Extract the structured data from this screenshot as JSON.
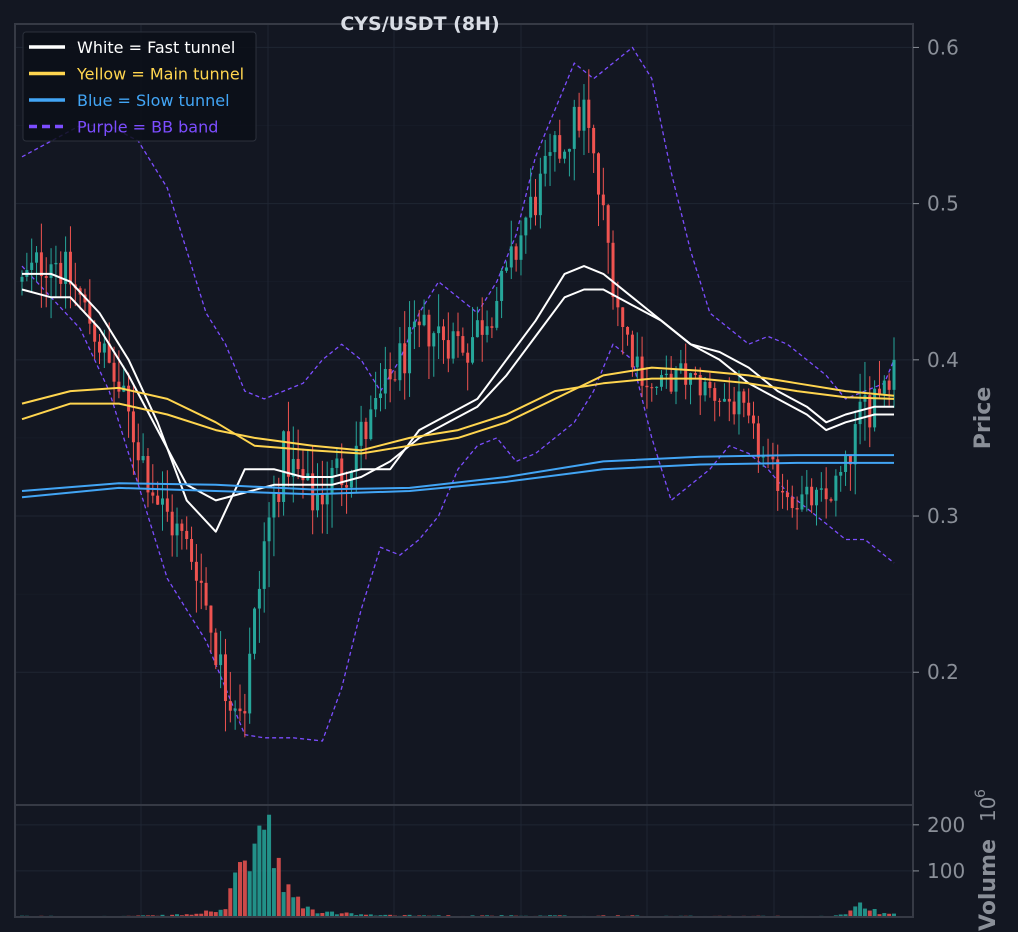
{
  "colors": {
    "background": "#131722",
    "panel_border": "#363a45",
    "grid": "#1f2633",
    "axis_text": "#8a8f98",
    "title_text": "#d9dde5",
    "bull": "#26a69a",
    "bear": "#ef5350",
    "fast_tunnel": "#ffffff",
    "main_tunnel": "#ffd54f",
    "slow_tunnel": "#42a5f5",
    "bb_band": "#7c4dff",
    "legend_bg": "#0c0f17"
  },
  "chart_data": {
    "type": "candlestick",
    "title": "CYS/USDT (8H)",
    "price_axis": {
      "label": "Price",
      "range": [
        0.115,
        0.615
      ],
      "ticks": [
        "0.2",
        "0.3",
        "0.4",
        "0.5",
        "0.6"
      ],
      "grid": true
    },
    "volume_axis": {
      "label": "Volume",
      "unit": "10^6",
      "unit_label": "10",
      "unit_exponent": "6",
      "range": [
        0,
        230
      ],
      "ticks": [
        "100",
        "200"
      ]
    },
    "legend": {
      "placement": "top-left",
      "entries": [
        {
          "label": "White = Fast tunnel",
          "color_key": "fast_tunnel",
          "style": "solid"
        },
        {
          "label": "Yellow = Main tunnel",
          "color_key": "main_tunnel",
          "style": "solid"
        },
        {
          "label": "Blue = Slow tunnel",
          "color_key": "slow_tunnel",
          "style": "solid"
        },
        {
          "label": "Purple = BB band",
          "color_key": "bb_band",
          "style": "dashed"
        }
      ]
    },
    "anchors": [
      [
        0,
        0.45,
        0.02,
        2
      ],
      [
        6,
        0.47,
        0.04,
        2
      ],
      [
        12,
        0.44,
        0.02,
        1.5
      ],
      [
        20,
        0.38,
        0.03,
        2
      ],
      [
        28,
        0.31,
        0.03,
        3
      ],
      [
        36,
        0.27,
        0.03,
        6
      ],
      [
        42,
        0.19,
        0.03,
        20
      ],
      [
        46,
        0.18,
        0.03,
        120
      ],
      [
        50,
        0.28,
        0.05,
        200
      ],
      [
        54,
        0.34,
        0.03,
        60
      ],
      [
        60,
        0.31,
        0.03,
        12
      ],
      [
        66,
        0.33,
        0.04,
        8
      ],
      [
        72,
        0.36,
        0.03,
        4
      ],
      [
        78,
        0.4,
        0.03,
        4
      ],
      [
        84,
        0.42,
        0.03,
        3
      ],
      [
        92,
        0.41,
        0.03,
        3
      ],
      [
        100,
        0.45,
        0.03,
        3
      ],
      [
        104,
        0.49,
        0.03,
        2
      ],
      [
        110,
        0.53,
        0.03,
        3
      ],
      [
        116,
        0.56,
        0.03,
        2
      ],
      [
        120,
        0.49,
        0.03,
        3
      ],
      [
        124,
        0.42,
        0.03,
        3
      ],
      [
        130,
        0.38,
        0.02,
        2
      ],
      [
        136,
        0.39,
        0.02,
        2
      ],
      [
        142,
        0.38,
        0.02,
        2
      ],
      [
        148,
        0.37,
        0.02,
        2
      ],
      [
        154,
        0.33,
        0.02,
        2
      ],
      [
        160,
        0.31,
        0.02,
        2
      ],
      [
        166,
        0.31,
        0.02,
        2
      ],
      [
        170,
        0.33,
        0.02,
        6
      ],
      [
        174,
        0.37,
        0.04,
        30
      ],
      [
        177,
        0.385,
        0.03,
        6
      ],
      [
        180,
        0.4,
        0.03,
        10
      ]
    ],
    "overlays": [
      {
        "key": "bb_upper",
        "color_key": "bb_band",
        "dashed": true,
        "points": [
          [
            0,
            0.53
          ],
          [
            6,
            0.54
          ],
          [
            12,
            0.55
          ],
          [
            18,
            0.55
          ],
          [
            24,
            0.54
          ],
          [
            30,
            0.51
          ],
          [
            34,
            0.47
          ],
          [
            38,
            0.43
          ],
          [
            42,
            0.41
          ],
          [
            46,
            0.38
          ],
          [
            50,
            0.375
          ],
          [
            54,
            0.38
          ],
          [
            58,
            0.385
          ],
          [
            62,
            0.4
          ],
          [
            66,
            0.41
          ],
          [
            70,
            0.4
          ],
          [
            74,
            0.38
          ],
          [
            78,
            0.4
          ],
          [
            82,
            0.43
          ],
          [
            86,
            0.45
          ],
          [
            90,
            0.44
          ],
          [
            94,
            0.43
          ],
          [
            98,
            0.45
          ],
          [
            102,
            0.48
          ],
          [
            106,
            0.53
          ],
          [
            110,
            0.56
          ],
          [
            114,
            0.59
          ],
          [
            118,
            0.58
          ],
          [
            122,
            0.59
          ],
          [
            126,
            0.6
          ],
          [
            130,
            0.58
          ],
          [
            134,
            0.52
          ],
          [
            138,
            0.47
          ],
          [
            142,
            0.43
          ],
          [
            146,
            0.42
          ],
          [
            150,
            0.41
          ],
          [
            154,
            0.415
          ],
          [
            158,
            0.41
          ],
          [
            162,
            0.4
          ],
          [
            166,
            0.39
          ],
          [
            170,
            0.375
          ],
          [
            174,
            0.38
          ],
          [
            178,
            0.385
          ],
          [
            180,
            0.4
          ]
        ]
      },
      {
        "key": "bb_lower",
        "color_key": "bb_band",
        "dashed": true,
        "points": [
          [
            0,
            0.46
          ],
          [
            6,
            0.44
          ],
          [
            12,
            0.42
          ],
          [
            18,
            0.38
          ],
          [
            22,
            0.34
          ],
          [
            26,
            0.3
          ],
          [
            30,
            0.26
          ],
          [
            34,
            0.24
          ],
          [
            38,
            0.22
          ],
          [
            42,
            0.19
          ],
          [
            46,
            0.16
          ],
          [
            50,
            0.158
          ],
          [
            56,
            0.158
          ],
          [
            62,
            0.156
          ],
          [
            66,
            0.19
          ],
          [
            70,
            0.24
          ],
          [
            74,
            0.28
          ],
          [
            78,
            0.275
          ],
          [
            82,
            0.285
          ],
          [
            86,
            0.3
          ],
          [
            90,
            0.33
          ],
          [
            94,
            0.345
          ],
          [
            98,
            0.35
          ],
          [
            102,
            0.335
          ],
          [
            106,
            0.34
          ],
          [
            110,
            0.35
          ],
          [
            114,
            0.36
          ],
          [
            118,
            0.38
          ],
          [
            122,
            0.41
          ],
          [
            126,
            0.4
          ],
          [
            130,
            0.35
          ],
          [
            134,
            0.31
          ],
          [
            138,
            0.32
          ],
          [
            142,
            0.33
          ],
          [
            146,
            0.345
          ],
          [
            150,
            0.34
          ],
          [
            154,
            0.33
          ],
          [
            158,
            0.315
          ],
          [
            162,
            0.305
          ],
          [
            166,
            0.295
          ],
          [
            170,
            0.285
          ],
          [
            174,
            0.285
          ],
          [
            178,
            0.275
          ],
          [
            180,
            0.27
          ]
        ]
      },
      {
        "key": "fast_upper",
        "color_key": "fast_tunnel",
        "dashed": false,
        "points": [
          [
            0,
            0.455
          ],
          [
            6,
            0.455
          ],
          [
            10,
            0.45
          ],
          [
            16,
            0.43
          ],
          [
            22,
            0.4
          ],
          [
            28,
            0.36
          ],
          [
            34,
            0.31
          ],
          [
            40,
            0.29
          ],
          [
            46,
            0.33
          ],
          [
            52,
            0.33
          ],
          [
            58,
            0.325
          ],
          [
            64,
            0.325
          ],
          [
            70,
            0.33
          ],
          [
            76,
            0.33
          ],
          [
            82,
            0.355
          ],
          [
            88,
            0.365
          ],
          [
            94,
            0.375
          ],
          [
            100,
            0.4
          ],
          [
            106,
            0.425
          ],
          [
            112,
            0.455
          ],
          [
            116,
            0.46
          ],
          [
            120,
            0.455
          ],
          [
            126,
            0.44
          ],
          [
            132,
            0.425
          ],
          [
            138,
            0.41
          ],
          [
            144,
            0.405
          ],
          [
            150,
            0.395
          ],
          [
            156,
            0.38
          ],
          [
            162,
            0.37
          ],
          [
            166,
            0.36
          ],
          [
            170,
            0.365
          ],
          [
            176,
            0.37
          ],
          [
            180,
            0.37
          ]
        ]
      },
      {
        "key": "fast_lower",
        "color_key": "fast_tunnel",
        "dashed": false,
        "points": [
          [
            0,
            0.445
          ],
          [
            6,
            0.44
          ],
          [
            10,
            0.44
          ],
          [
            16,
            0.42
          ],
          [
            22,
            0.39
          ],
          [
            28,
            0.355
          ],
          [
            34,
            0.32
          ],
          [
            40,
            0.31
          ],
          [
            46,
            0.315
          ],
          [
            52,
            0.32
          ],
          [
            58,
            0.32
          ],
          [
            64,
            0.32
          ],
          [
            70,
            0.325
          ],
          [
            76,
            0.335
          ],
          [
            82,
            0.35
          ],
          [
            88,
            0.36
          ],
          [
            94,
            0.37
          ],
          [
            100,
            0.39
          ],
          [
            106,
            0.415
          ],
          [
            112,
            0.44
          ],
          [
            116,
            0.445
          ],
          [
            120,
            0.445
          ],
          [
            126,
            0.435
          ],
          [
            132,
            0.425
          ],
          [
            138,
            0.41
          ],
          [
            144,
            0.4
          ],
          [
            150,
            0.385
          ],
          [
            156,
            0.375
          ],
          [
            162,
            0.365
          ],
          [
            166,
            0.355
          ],
          [
            170,
            0.36
          ],
          [
            176,
            0.365
          ],
          [
            180,
            0.365
          ]
        ]
      },
      {
        "key": "main_upper",
        "color_key": "main_tunnel",
        "dashed": false,
        "points": [
          [
            0,
            0.372
          ],
          [
            10,
            0.38
          ],
          [
            20,
            0.382
          ],
          [
            30,
            0.375
          ],
          [
            40,
            0.36
          ],
          [
            48,
            0.345
          ],
          [
            60,
            0.342
          ],
          [
            70,
            0.34
          ],
          [
            80,
            0.345
          ],
          [
            90,
            0.35
          ],
          [
            100,
            0.36
          ],
          [
            110,
            0.375
          ],
          [
            120,
            0.39
          ],
          [
            130,
            0.395
          ],
          [
            140,
            0.393
          ],
          [
            150,
            0.39
          ],
          [
            160,
            0.385
          ],
          [
            170,
            0.38
          ],
          [
            180,
            0.377
          ]
        ]
      },
      {
        "key": "main_lower",
        "color_key": "main_tunnel",
        "dashed": false,
        "points": [
          [
            0,
            0.362
          ],
          [
            10,
            0.372
          ],
          [
            20,
            0.372
          ],
          [
            30,
            0.365
          ],
          [
            40,
            0.355
          ],
          [
            48,
            0.35
          ],
          [
            60,
            0.345
          ],
          [
            70,
            0.342
          ],
          [
            80,
            0.35
          ],
          [
            90,
            0.355
          ],
          [
            100,
            0.365
          ],
          [
            110,
            0.38
          ],
          [
            120,
            0.385
          ],
          [
            130,
            0.388
          ],
          [
            140,
            0.388
          ],
          [
            150,
            0.385
          ],
          [
            160,
            0.38
          ],
          [
            170,
            0.376
          ],
          [
            180,
            0.375
          ]
        ]
      },
      {
        "key": "slow_upper",
        "color_key": "slow_tunnel",
        "dashed": false,
        "points": [
          [
            0,
            0.316
          ],
          [
            20,
            0.321
          ],
          [
            40,
            0.32
          ],
          [
            60,
            0.317
          ],
          [
            80,
            0.318
          ],
          [
            100,
            0.325
          ],
          [
            120,
            0.335
          ],
          [
            140,
            0.338
          ],
          [
            160,
            0.339
          ],
          [
            180,
            0.339
          ]
        ]
      },
      {
        "key": "slow_lower",
        "color_key": "slow_tunnel",
        "dashed": false,
        "points": [
          [
            0,
            0.312
          ],
          [
            20,
            0.318
          ],
          [
            40,
            0.316
          ],
          [
            60,
            0.314
          ],
          [
            80,
            0.316
          ],
          [
            100,
            0.322
          ],
          [
            120,
            0.33
          ],
          [
            140,
            0.333
          ],
          [
            160,
            0.334
          ],
          [
            180,
            0.334
          ]
        ]
      }
    ]
  }
}
